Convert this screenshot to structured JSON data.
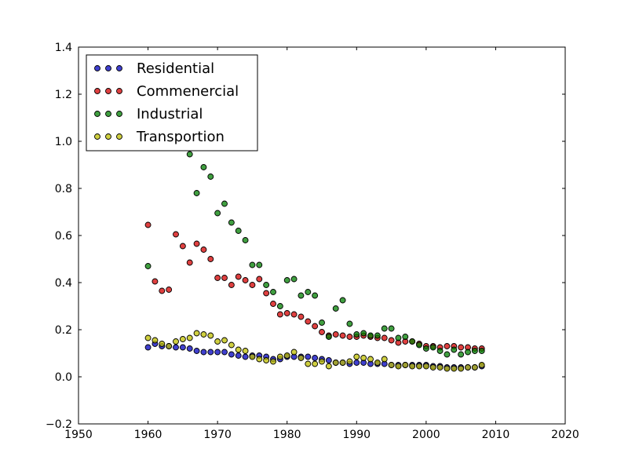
{
  "chart_data": {
    "type": "scatter",
    "title": "",
    "xlabel": "",
    "ylabel": "",
    "xlim": [
      1950,
      2020
    ],
    "ylim": [
      -0.2,
      1.4
    ],
    "xticks": [
      1950,
      1960,
      1970,
      1980,
      1990,
      2000,
      2010,
      2020
    ],
    "yticks": [
      -0.2,
      0.0,
      0.2,
      0.4,
      0.6,
      0.8,
      1.0,
      1.2,
      1.4
    ],
    "xtick_labels": [
      "1950",
      "1960",
      "1970",
      "1980",
      "1990",
      "2000",
      "2010",
      "2020"
    ],
    "ytick_labels": [
      "−0.2",
      "0.0",
      "0.2",
      "0.4",
      "0.6",
      "0.8",
      "1.0",
      "1.2",
      "1.4"
    ],
    "grid": false,
    "legend_position": "top-left",
    "x": [
      1960,
      1961,
      1962,
      1963,
      1964,
      1965,
      1966,
      1967,
      1968,
      1969,
      1970,
      1971,
      1972,
      1973,
      1974,
      1975,
      1976,
      1977,
      1978,
      1979,
      1980,
      1981,
      1982,
      1983,
      1984,
      1985,
      1986,
      1987,
      1988,
      1989,
      1990,
      1991,
      1992,
      1993,
      1994,
      1995,
      1996,
      1997,
      1998,
      1999,
      2000,
      2001,
      2002,
      2003,
      2004,
      2005,
      2006,
      2007,
      2008
    ],
    "series": [
      {
        "name": "Residential",
        "color": "#0000bf",
        "values": [
          0.125,
          0.14,
          0.13,
          0.13,
          0.125,
          0.125,
          0.12,
          0.11,
          0.105,
          0.105,
          0.105,
          0.105,
          0.095,
          0.09,
          0.085,
          0.09,
          0.09,
          0.085,
          0.075,
          0.075,
          0.085,
          0.085,
          0.085,
          0.085,
          0.08,
          0.075,
          0.07,
          0.06,
          0.06,
          0.055,
          0.06,
          0.06,
          0.055,
          0.055,
          0.055,
          0.05,
          0.05,
          0.05,
          0.05,
          0.05,
          0.05,
          0.045,
          0.045,
          0.04,
          0.04,
          0.04,
          0.04,
          0.04,
          0.045
        ]
      },
      {
        "name": "Commenercial",
        "color": "#d40000",
        "values": [
          0.645,
          0.405,
          0.365,
          0.37,
          0.605,
          0.555,
          0.485,
          0.565,
          0.54,
          0.5,
          0.42,
          0.42,
          0.39,
          0.425,
          0.41,
          0.39,
          0.415,
          0.355,
          0.31,
          0.265,
          0.27,
          0.265,
          0.255,
          0.235,
          0.215,
          0.19,
          0.175,
          0.18,
          0.175,
          0.17,
          0.17,
          0.175,
          0.17,
          0.165,
          0.165,
          0.155,
          0.145,
          0.15,
          0.15,
          0.14,
          0.13,
          0.13,
          0.125,
          0.13,
          0.13,
          0.125,
          0.125,
          0.12,
          0.12
        ]
      },
      {
        "name": "Industrial",
        "color": "#007f00",
        "values": [
          0.47,
          null,
          null,
          null,
          null,
          null,
          0.945,
          0.78,
          0.89,
          0.85,
          0.695,
          0.735,
          0.655,
          0.62,
          0.58,
          0.475,
          0.475,
          0.39,
          0.36,
          0.3,
          0.41,
          0.415,
          0.345,
          0.36,
          0.345,
          0.23,
          0.17,
          0.29,
          0.325,
          0.225,
          0.18,
          0.185,
          0.175,
          0.175,
          0.205,
          0.205,
          0.165,
          0.17,
          0.15,
          0.135,
          0.12,
          0.125,
          0.11,
          0.095,
          0.115,
          0.095,
          0.105,
          0.11,
          0.11
        ]
      },
      {
        "name": "Transportion",
        "color": "#bfbf00",
        "values": [
          0.165,
          0.155,
          0.14,
          0.13,
          0.15,
          0.16,
          0.165,
          0.185,
          0.18,
          0.175,
          0.15,
          0.155,
          0.135,
          0.115,
          0.11,
          0.085,
          0.075,
          0.07,
          0.065,
          0.085,
          0.09,
          0.105,
          0.08,
          0.055,
          0.055,
          0.065,
          0.045,
          0.06,
          0.06,
          0.065,
          0.085,
          0.08,
          0.075,
          0.06,
          0.075,
          0.05,
          0.045,
          0.05,
          0.045,
          0.045,
          0.045,
          0.04,
          0.04,
          0.035,
          0.035,
          0.035,
          0.04,
          0.04,
          0.05
        ]
      }
    ]
  }
}
